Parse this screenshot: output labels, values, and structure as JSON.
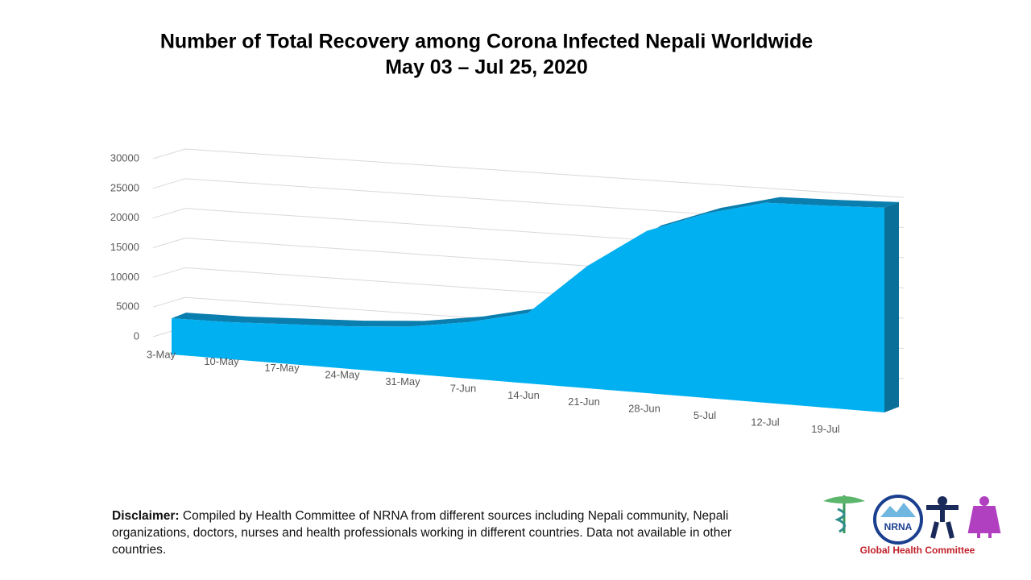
{
  "chart_data": {
    "type": "area3d",
    "title": "Number of Total Recovery among Corona Infected Nepali Worldwide",
    "subtitle": "May 03 – Jul 25, 2020",
    "categories": [
      "3-May",
      "10-May",
      "17-May",
      "24-May",
      "31-May",
      "7-Jun",
      "14-Jun",
      "21-Jun",
      "28-Jun",
      "5-Jul",
      "12-Jul",
      "19-Jul",
      null
    ],
    "values": [
      3900,
      4000,
      4300,
      4600,
      5100,
      6100,
      7600,
      13200,
      17500,
      19900,
      21600,
      21800,
      22100
    ],
    "color": "#00b0f0",
    "ylim": [
      0,
      30000
    ],
    "yticks": [
      0,
      5000,
      10000,
      15000,
      20000,
      25000,
      30000
    ],
    "grid": true
  },
  "disclaimer": {
    "label": "Disclaimer:",
    "text": "Compiled by Health Committee of NRNA from different sources including Nepali community, Nepali organizations, doctors, nurses and health professionals working in different countries. Data not available in other countries."
  },
  "logo": {
    "acronym": "NRNA",
    "caption": "Global Health Committee"
  }
}
